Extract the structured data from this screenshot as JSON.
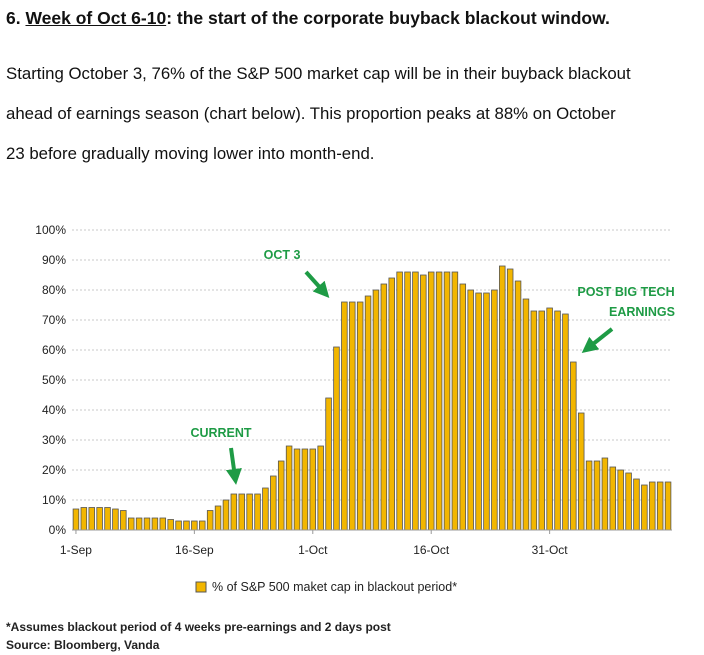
{
  "heading": {
    "number": "6.",
    "underlined": "Week of Oct 6-10",
    "rest": ": the start of the corporate buyback blackout window."
  },
  "paragraph_lines": [
    "Starting October 3, 76% of the S&P 500 market cap will be in their buyback blackout",
    "ahead of earnings season (chart below). This proportion peaks at 88% on October",
    "23 before gradually moving lower into month-end."
  ],
  "chart_data": {
    "type": "bar",
    "ylim": [
      0,
      100
    ],
    "yticks": [
      "0%",
      "10%",
      "20%",
      "30%",
      "40%",
      "50%",
      "60%",
      "70%",
      "80%",
      "90%",
      "100%"
    ],
    "xtick_labels": [
      {
        "label": "1-Sep",
        "index": 0
      },
      {
        "label": "16-Sep",
        "index": 15
      },
      {
        "label": "1-Oct",
        "index": 30
      },
      {
        "label": "16-Oct",
        "index": 45
      },
      {
        "label": "31-Oct",
        "index": 60
      }
    ],
    "series": [
      {
        "name": "% of S&P 500 maket cap in blackout period*",
        "color": "#f2b600",
        "values": [
          7,
          7.5,
          7.5,
          7.5,
          7.5,
          7,
          6.5,
          4,
          4,
          4,
          4,
          4,
          3.5,
          3,
          3,
          3,
          3,
          6.5,
          8,
          10,
          12,
          12,
          12,
          12,
          14,
          18,
          23,
          28,
          27,
          27,
          27,
          28,
          44,
          61,
          76,
          76,
          76,
          78,
          80,
          82,
          84,
          86,
          86,
          86,
          85,
          86,
          86,
          86,
          86,
          82,
          80,
          79,
          79,
          80,
          88,
          87,
          83,
          77,
          73,
          73,
          74,
          73,
          72,
          56,
          39,
          23,
          23,
          24,
          21,
          20,
          19,
          17,
          15,
          16,
          16,
          16
        ]
      }
    ],
    "annotations": [
      {
        "text": "OCT 3",
        "target_index": 34
      },
      {
        "text": "CURRENT",
        "target_index": 22
      },
      {
        "lines": [
          "POST BIG TECH",
          "EARNINGS"
        ],
        "target_index": 63
      }
    ],
    "legend": "% of S&P 500 maket cap in blackout period*",
    "legend_position": "bottom-center",
    "grid": true
  },
  "footnotes": [
    "*Assumes blackout period of 4 weeks pre-earnings and 2 days post",
    "Source: Bloomberg, Vanda"
  ]
}
